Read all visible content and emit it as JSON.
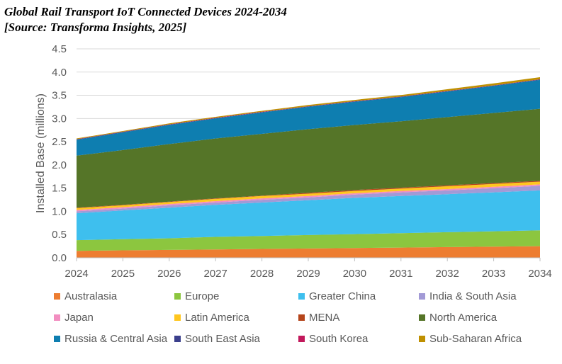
{
  "chart_data": {
    "type": "area",
    "stacked": true,
    "title": "Global Rail Transport IoT Connected Devices 2024-2034",
    "subtitle": "[Source: Transforma Insights, 2025]",
    "xlabel": "",
    "ylabel": "Installed Base (millions)",
    "x": [
      "2024",
      "2025",
      "2026",
      "2027",
      "2028",
      "2029",
      "2030",
      "2031",
      "2032",
      "2033",
      "2034"
    ],
    "ylim": [
      0,
      4.5
    ],
    "yticks": [
      "0.0",
      "0.5",
      "1.0",
      "1.5",
      "2.0",
      "2.5",
      "3.0",
      "3.5",
      "4.0",
      "4.5"
    ],
    "series": [
      {
        "name": "Australasia",
        "color": "#ED7D31",
        "values": [
          0.15,
          0.16,
          0.17,
          0.18,
          0.19,
          0.2,
          0.21,
          0.22,
          0.23,
          0.24,
          0.25
        ]
      },
      {
        "name": "Europe",
        "color": "#8CC63F",
        "values": [
          0.23,
          0.24,
          0.25,
          0.27,
          0.28,
          0.29,
          0.3,
          0.31,
          0.32,
          0.33,
          0.34
        ]
      },
      {
        "name": "Greater China",
        "color": "#3EBFEE",
        "values": [
          0.58,
          0.62,
          0.66,
          0.69,
          0.72,
          0.75,
          0.78,
          0.8,
          0.82,
          0.84,
          0.86
        ]
      },
      {
        "name": "India & South Asia",
        "color": "#A29AD6",
        "values": [
          0.04,
          0.04,
          0.05,
          0.05,
          0.06,
          0.06,
          0.07,
          0.08,
          0.08,
          0.09,
          0.1
        ]
      },
      {
        "name": "Japan",
        "color": "#F28EC0",
        "values": [
          0.03,
          0.03,
          0.03,
          0.03,
          0.03,
          0.03,
          0.03,
          0.03,
          0.03,
          0.03,
          0.03
        ]
      },
      {
        "name": "Latin America",
        "color": "#FFC61E",
        "values": [
          0.04,
          0.04,
          0.04,
          0.05,
          0.05,
          0.05,
          0.05,
          0.05,
          0.06,
          0.06,
          0.06
        ]
      },
      {
        "name": "MENA",
        "color": "#B5451B",
        "values": [
          0.01,
          0.01,
          0.01,
          0.01,
          0.01,
          0.02,
          0.02,
          0.02,
          0.02,
          0.02,
          0.02
        ]
      },
      {
        "name": "North America",
        "color": "#557528",
        "values": [
          1.12,
          1.18,
          1.24,
          1.29,
          1.33,
          1.37,
          1.4,
          1.43,
          1.47,
          1.51,
          1.55
        ]
      },
      {
        "name": "Russia & Central Asia",
        "color": "#0E7EB0",
        "values": [
          0.34,
          0.38,
          0.41,
          0.43,
          0.46,
          0.48,
          0.5,
          0.52,
          0.55,
          0.58,
          0.62
        ]
      },
      {
        "name": "South East Asia",
        "color": "#3B3F8C",
        "values": [
          0.01,
          0.01,
          0.01,
          0.01,
          0.01,
          0.01,
          0.01,
          0.01,
          0.01,
          0.01,
          0.01
        ]
      },
      {
        "name": "South Korea",
        "color": "#C2185B",
        "values": [
          0.005,
          0.005,
          0.005,
          0.005,
          0.005,
          0.005,
          0.005,
          0.005,
          0.005,
          0.005,
          0.005
        ]
      },
      {
        "name": "Sub-Saharan Africa",
        "color": "#BF9000",
        "values": [
          0.015,
          0.015,
          0.02,
          0.02,
          0.02,
          0.025,
          0.025,
          0.03,
          0.035,
          0.04,
          0.045
        ]
      }
    ],
    "legend_position": "bottom",
    "grid": true
  }
}
